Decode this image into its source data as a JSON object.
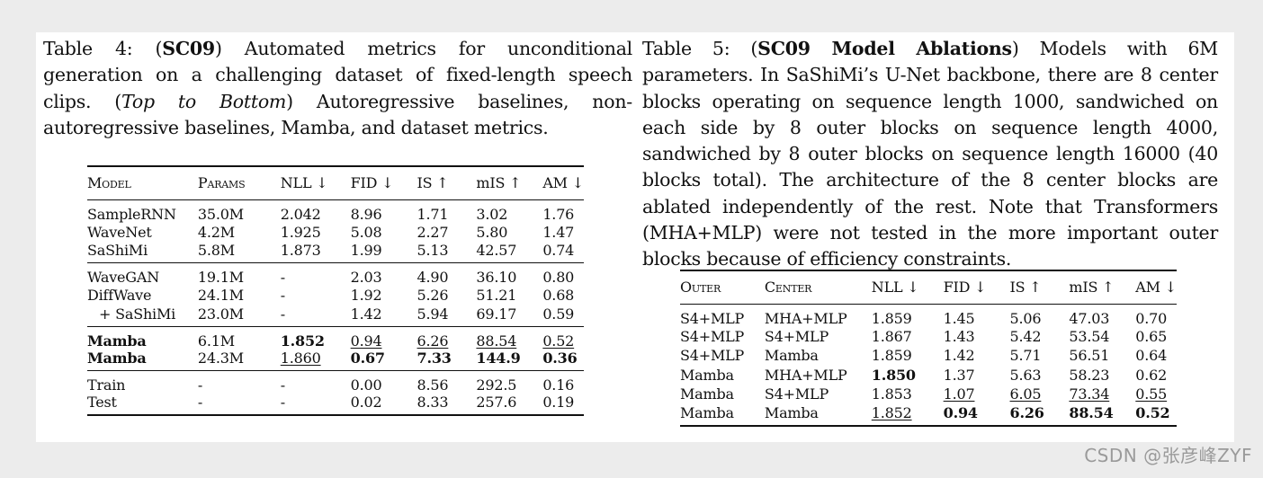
{
  "table4": {
    "caption": {
      "label": "Table 4: (",
      "tag": "SC09",
      "text1": ") Automated metrics for unconditional generation on a challenging dataset of fixed-length speech clips. (",
      "order": "Top to Bottom",
      "text2": ") Autoregressive baselines, non-autoregressive baselines, Mamba, and dataset metrics."
    },
    "headers": [
      "Model",
      "Params",
      "NLL ↓",
      "FID ↓",
      "IS ↑",
      "mIS ↑",
      "AM ↓"
    ],
    "groups": [
      [
        [
          "SampleRNN",
          "35.0M",
          "2.042",
          "8.96",
          "1.71",
          "3.02",
          "1.76"
        ],
        [
          "WaveNet",
          "4.2M",
          "1.925",
          "5.08",
          "2.27",
          "5.80",
          "1.47"
        ],
        [
          "SaShiMi",
          "5.8M",
          "1.873",
          "1.99",
          "5.13",
          "42.57",
          "0.74"
        ]
      ],
      [
        [
          "WaveGAN",
          "19.1M",
          "-",
          "2.03",
          "4.90",
          "36.10",
          "0.80"
        ],
        [
          "DiffWave",
          "24.1M",
          "-",
          "1.92",
          "5.26",
          "51.21",
          "0.68"
        ],
        [
          "+ SaShiMi",
          "23.0M",
          "-",
          "1.42",
          "5.94",
          "69.17",
          "0.59"
        ]
      ],
      [
        [
          "Mamba",
          "6.1M",
          "1.852",
          "0.94",
          "6.26",
          "88.54",
          "0.52"
        ],
        [
          "Mamba",
          "24.3M",
          "1.860",
          "0.67",
          "7.33",
          "144.9",
          "0.36"
        ]
      ],
      [
        [
          "Train",
          "-",
          "-",
          "0.00",
          "8.56",
          "292.5",
          "0.16"
        ],
        [
          "Test",
          "-",
          "-",
          "0.02",
          "8.33",
          "257.6",
          "0.19"
        ]
      ]
    ]
  },
  "table5": {
    "caption": {
      "label": "Table 5: (",
      "tag": "SC09 Model Ablations",
      "text1": ") Models with 6M parameters. In SaShiMi’s U-Net backbone, there are 8 center blocks operating on sequence length 1000, sandwiched on each side by 8 outer blocks on sequence length 4000, sandwiched by 8 outer blocks on sequence length 16000 (40 blocks total).  The architecture of the 8 center blocks are ablated independently of the rest. Note that Transformers (MHA+MLP) were not tested in the more important outer blocks because of efficiency constraints."
    },
    "headers": [
      "Outer",
      "Center",
      "NLL ↓",
      "FID ↓",
      "IS ↑",
      "mIS ↑",
      "AM ↓"
    ],
    "rows": [
      [
        "S4+MLP",
        "MHA+MLP",
        "1.859",
        "1.45",
        "5.06",
        "47.03",
        "0.70"
      ],
      [
        "S4+MLP",
        "S4+MLP",
        "1.867",
        "1.43",
        "5.42",
        "53.54",
        "0.65"
      ],
      [
        "S4+MLP",
        "Mamba",
        "1.859",
        "1.42",
        "5.71",
        "56.51",
        "0.64"
      ],
      [
        "Mamba",
        "MHA+MLP",
        "1.850",
        "1.37",
        "5.63",
        "58.23",
        "0.62"
      ],
      [
        "Mamba",
        "S4+MLP",
        "1.853",
        "1.07",
        "6.05",
        "73.34",
        "0.55"
      ],
      [
        "Mamba",
        "Mamba",
        "1.852",
        "0.94",
        "6.26",
        "88.54",
        "0.52"
      ]
    ]
  },
  "watermark": "CSDN @张彦峰ZYF"
}
